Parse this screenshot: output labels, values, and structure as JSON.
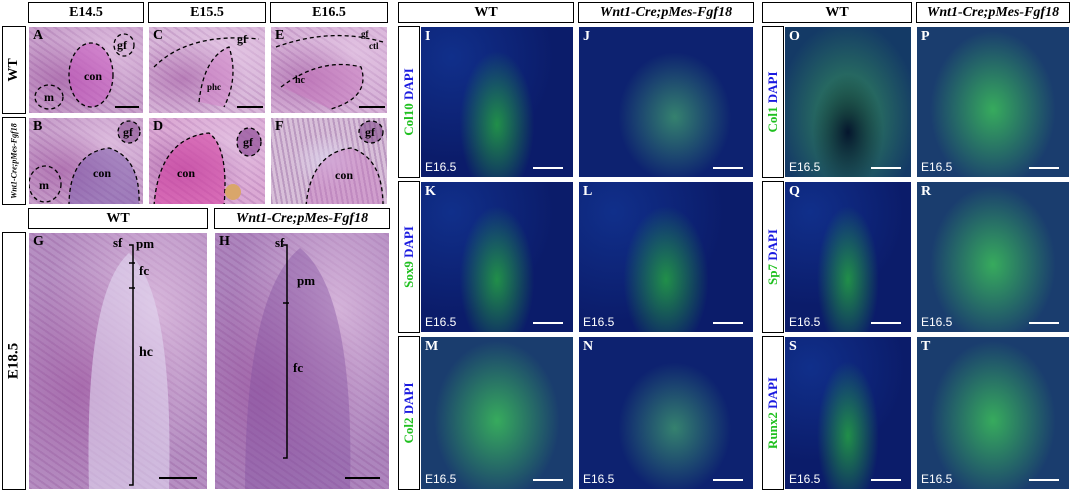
{
  "headers": {
    "e145": "E14.5",
    "e155": "E15.5",
    "e165": "E16.5",
    "wt_g": "WT",
    "mut_h": "Wnt1-Cre;pMes-Fgf18",
    "wt_ij": "WT",
    "mut_ij": "Wnt1-Cre;pMes-Fgf18",
    "wt_op": "WT",
    "mut_op": "Wnt1-Cre;pMes-Fgf18"
  },
  "rows": {
    "wt": "WT",
    "mut": "Wnt1-Cre;pMes-Fgf18",
    "e185": "E18.5"
  },
  "panels": [
    "A",
    "B",
    "C",
    "D",
    "E",
    "F",
    "G",
    "H",
    "I",
    "J",
    "K",
    "L",
    "M",
    "N",
    "O",
    "P",
    "Q",
    "R",
    "S",
    "T"
  ],
  "annotations": {
    "m": "m",
    "con": "con",
    "gf": "gf",
    "pm": "pm",
    "fc": "fc",
    "hc": "hc",
    "sf": "sf",
    "phc": "phc",
    "ctl": "ctl",
    "pm_small": "pm"
  },
  "stage": "E16.5",
  "markers": {
    "col10": "Col10",
    "sox9": "Sox9",
    "col2": "Col2",
    "col1": "Col1",
    "sp7": "Sp7",
    "runx2": "Runx2",
    "dapi": "DAPI"
  },
  "colors": {
    "green": "#20c020",
    "blue": "#1a1ae0"
  }
}
